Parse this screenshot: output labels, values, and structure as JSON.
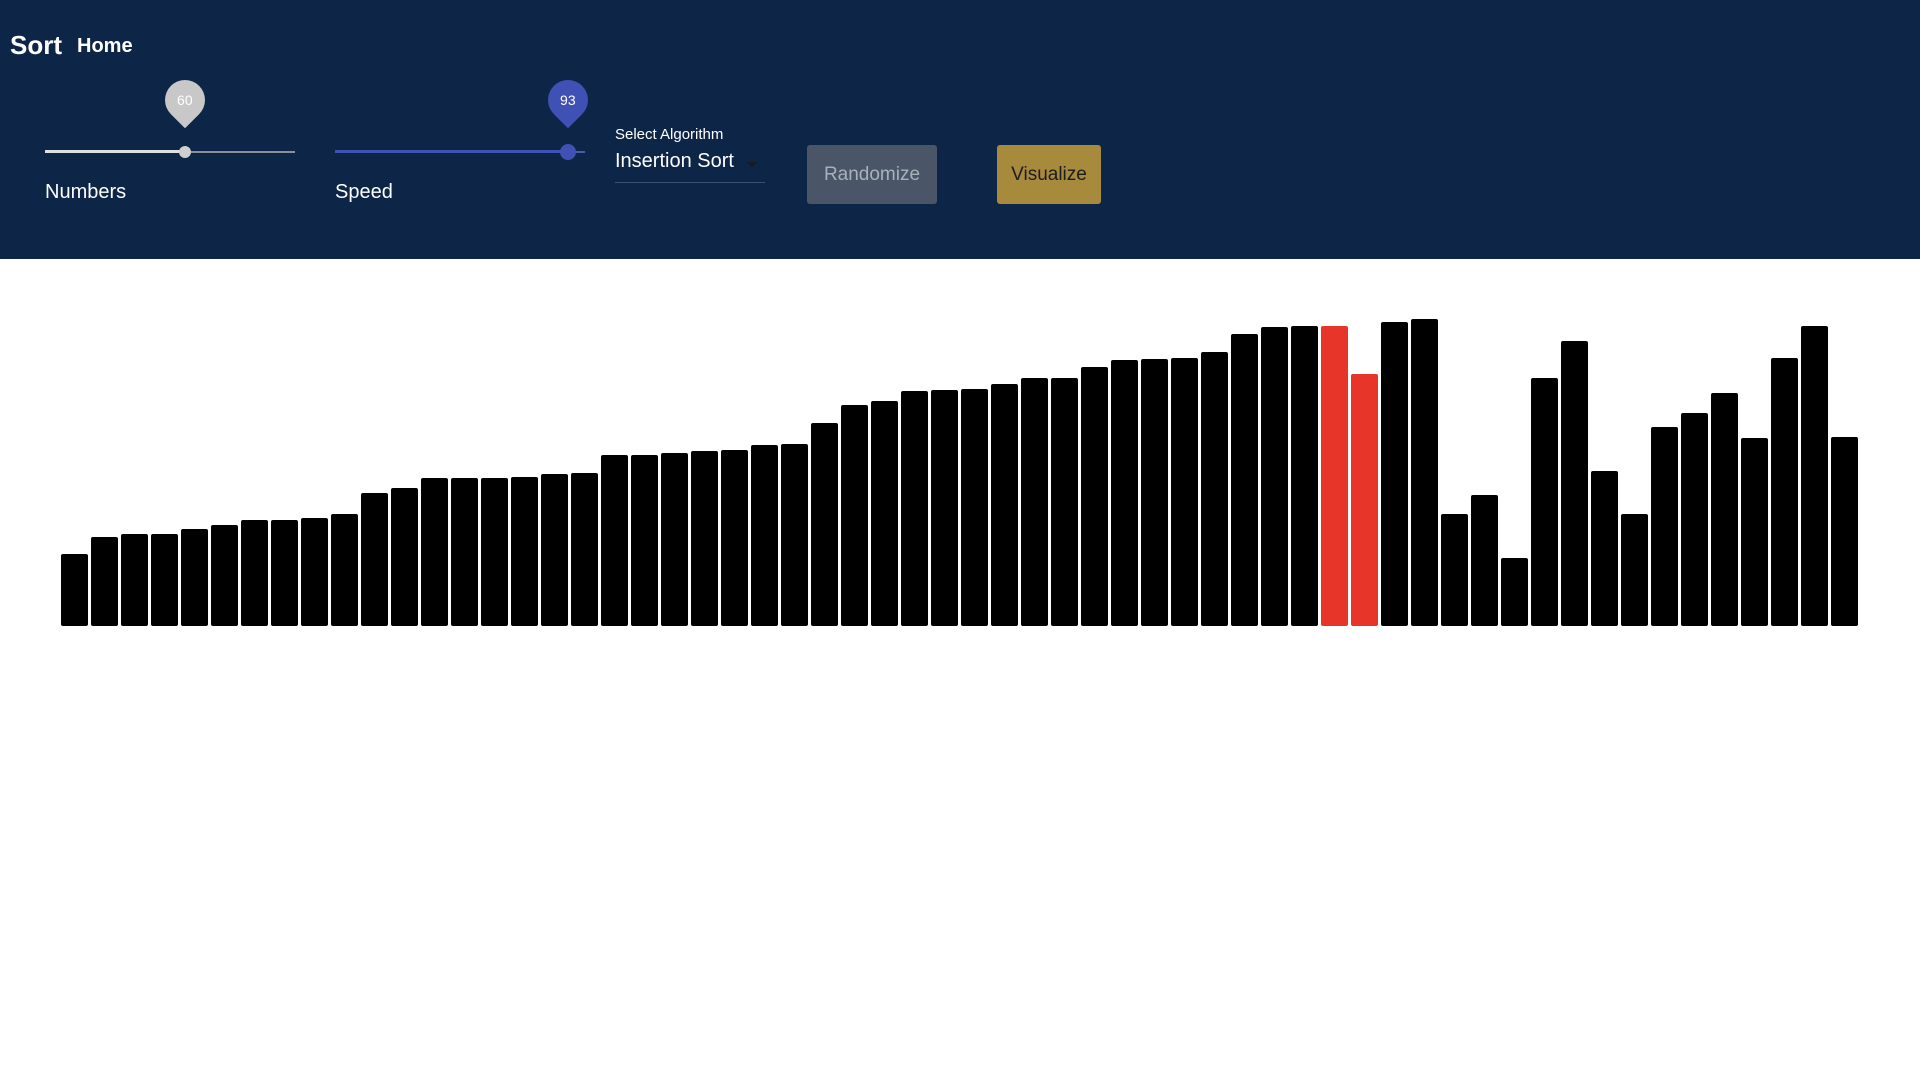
{
  "header": {
    "brand": "Sort",
    "home_link": "Home"
  },
  "controls": {
    "numbers": {
      "label": "Numbers",
      "value": 60,
      "min": 0,
      "max": 107
    },
    "speed": {
      "label": "Speed",
      "value": 93,
      "min": 0,
      "max": 100
    },
    "algorithm": {
      "label": "Select Algorithm",
      "selected": "Insertion Sort"
    },
    "randomize_label": "Randomize",
    "visualize_label": "Visualize"
  },
  "colors": {
    "header_bg": "#0d2546",
    "bar_default": "#000000",
    "bar_compare": "#e8352a",
    "visualize_bg": "#a88a3c",
    "randomize_bg": "#4a5668",
    "accent": "#3f51b5"
  },
  "chart_data": {
    "type": "bar",
    "values": [
      72,
      89,
      92,
      92,
      97,
      101,
      106,
      106,
      108,
      112,
      133,
      138,
      148,
      148,
      148,
      149,
      152,
      153,
      171,
      171,
      173,
      175,
      176,
      181,
      182,
      203,
      221,
      225,
      235,
      236,
      237,
      242,
      248,
      248,
      259,
      266,
      267,
      268,
      274,
      292,
      299,
      300,
      300,
      252,
      304,
      307,
      112,
      131,
      68,
      248,
      285,
      155,
      112,
      199,
      213,
      233,
      188,
      268,
      300,
      189
    ],
    "highlight_indices": [
      42,
      43
    ],
    "ymax": 300
  }
}
